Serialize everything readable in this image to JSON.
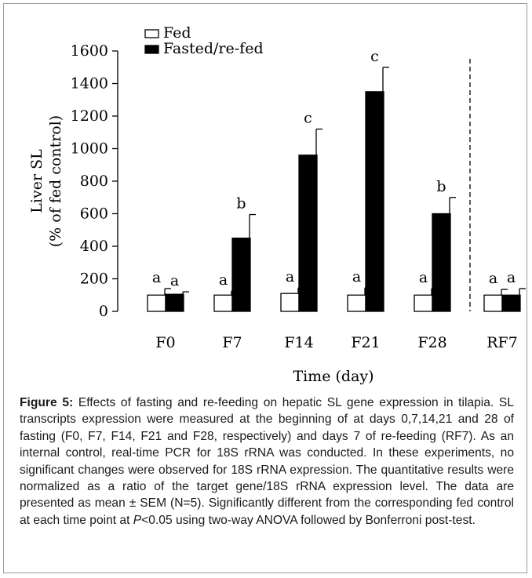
{
  "chart_data": {
    "type": "bar",
    "categories": [
      "F0",
      "F7",
      "F14",
      "F21",
      "F28",
      "RF7"
    ],
    "series": [
      {
        "name": "Fed",
        "values": [
          100,
          100,
          110,
          100,
          100,
          100
        ],
        "sem": [
          40,
          25,
          35,
          45,
          40,
          35
        ],
        "labels": [
          "a",
          "a",
          "a",
          "a",
          "a",
          "a"
        ],
        "color": "#ffffff"
      },
      {
        "name": "Fasted/re-fed",
        "values": [
          105,
          450,
          960,
          1350,
          600,
          100
        ],
        "sem": [
          15,
          145,
          160,
          150,
          100,
          40
        ],
        "labels": [
          "a",
          "b",
          "c",
          "c",
          "b",
          "a"
        ],
        "color": "#000000"
      }
    ],
    "ylabel": [
      "Liver SL",
      "(% of fed control)"
    ],
    "xlabel": "Time (day)",
    "ylim": [
      0,
      1600
    ],
    "yticks": [
      0,
      200,
      400,
      600,
      800,
      1000,
      1200,
      1400,
      1600
    ],
    "legend_position": "top-left",
    "divider": "dashed line between F28 and RF7"
  },
  "caption": {
    "label": "Figure 5:",
    "text_before_p": " Effects of fasting and re-feeding on hepatic SL gene expression in tilapia. SL transcripts expression were measured at the beginning of at days 0,7,14,21 and 28 of fasting (F0, F7, F14, F21 and F28, respectively) and days 7 of re-feeding (RF7). As an internal control, real-time PCR for 18S rRNA was conducted. In these experiments, no significant changes were observed for 18S rRNA expression. The quantitative results were normalized as a ratio of the target gene/18S rRNA expression level. The data are presented as mean ± SEM (N=5). Significantly different from the corresponding fed control at each time point at ",
    "p_symbol": "P",
    "text_after_p": "<0.05 using two-way ANOVA followed by Bonferroni post-test."
  }
}
